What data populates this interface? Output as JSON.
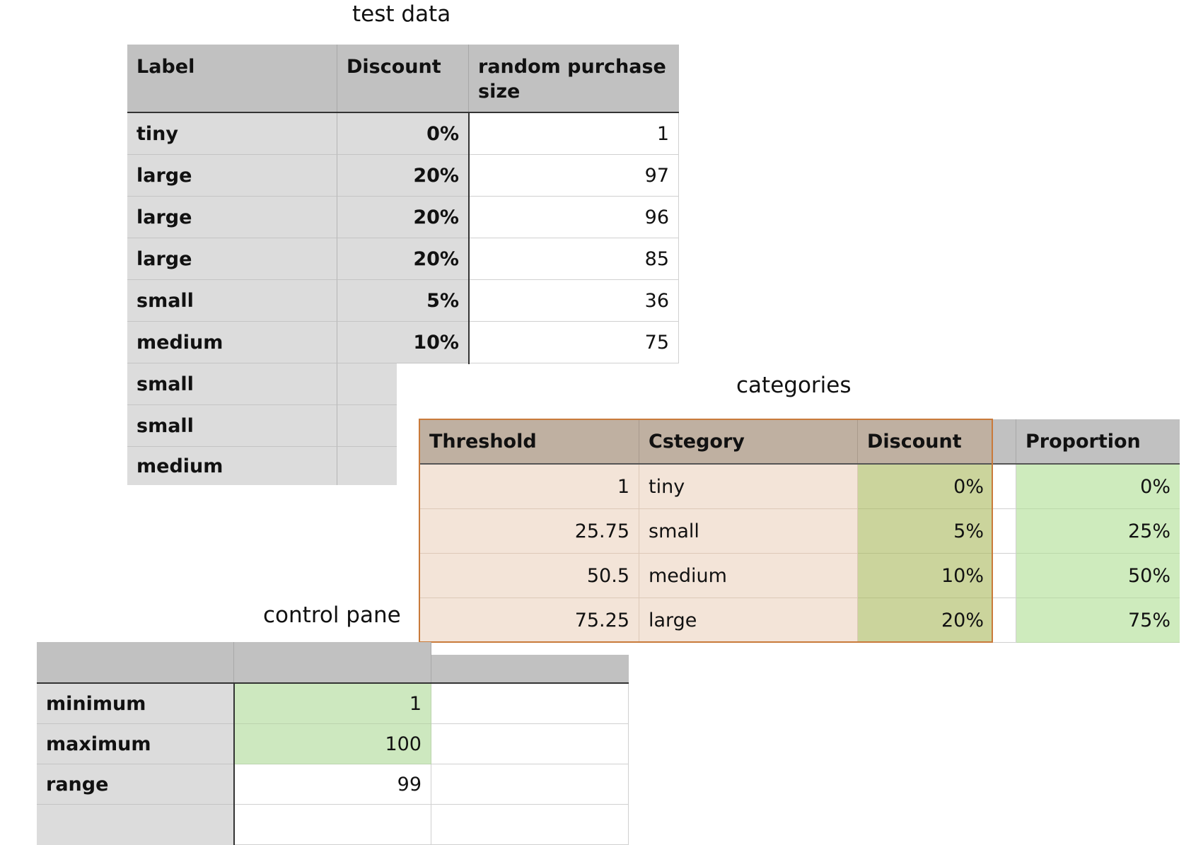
{
  "test_data": {
    "title": "test data",
    "headers": [
      "Label",
      "Discount",
      "random purchase size"
    ],
    "rows": [
      {
        "label": "tiny",
        "discount": "0%",
        "size": "1"
      },
      {
        "label": "large",
        "discount": "20%",
        "size": "97"
      },
      {
        "label": "large",
        "discount": "20%",
        "size": "96"
      },
      {
        "label": "large",
        "discount": "20%",
        "size": "85"
      },
      {
        "label": "small",
        "discount": "5%",
        "size": "36"
      },
      {
        "label": "medium",
        "discount": "10%",
        "size": "75"
      },
      {
        "label": "small",
        "discount": "",
        "size": ""
      },
      {
        "label": "small",
        "discount": "",
        "size": ""
      },
      {
        "label": "medium",
        "discount": "",
        "size": ""
      }
    ]
  },
  "categories": {
    "title": "categories",
    "headers": [
      "Threshold",
      "Cstegory",
      "Discount",
      "",
      "Proportion"
    ],
    "rows": [
      {
        "threshold": "1",
        "category": "tiny",
        "discount": "0%",
        "proportion": "0%"
      },
      {
        "threshold": "25.75",
        "category": "small",
        "discount": "5%",
        "proportion": "25%"
      },
      {
        "threshold": "50.5",
        "category": "medium",
        "discount": "10%",
        "proportion": "50%"
      },
      {
        "threshold": "75.25",
        "category": "large",
        "discount": "20%",
        "proportion": "75%"
      }
    ]
  },
  "control_pane": {
    "title": "control pane",
    "rows": [
      {
        "label": "minimum",
        "value": "1",
        "extra": ""
      },
      {
        "label": "maximum",
        "value": "100",
        "extra": ""
      },
      {
        "label": "range",
        "value": "99",
        "extra": ""
      },
      {
        "label": "",
        "value": "",
        "extra": ""
      }
    ]
  },
  "colors": {
    "header_gray": "#c1c1c1",
    "label_gray": "#dcdcdc",
    "input_green": "#cde8bf",
    "category_peach": "#f3e4d8",
    "category_header_tan": "#bfb0a1",
    "discount_olive": "#cbd49c",
    "table_border_orange": "#c97a3a"
  }
}
